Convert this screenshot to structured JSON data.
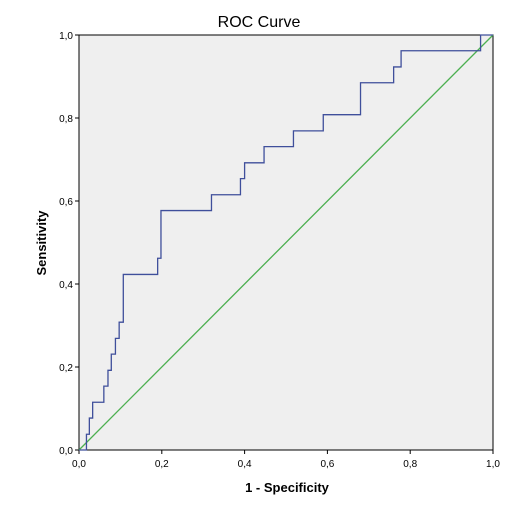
{
  "chart_data": {
    "type": "line",
    "title": "ROC Curve",
    "xlabel": "1 - Specificity",
    "ylabel": "Sensitivity",
    "xlim": [
      0,
      1
    ],
    "ylim": [
      0,
      1
    ],
    "x_ticks": [
      "0,0",
      "0,2",
      "0,4",
      "0,6",
      "0,8",
      "1,0"
    ],
    "y_ticks": [
      "0,0",
      "0,2",
      "0,4",
      "0,6",
      "0,8",
      "1,0"
    ],
    "grid": false,
    "legend": "none",
    "colors": {
      "plot_background": "#efefef",
      "roc_line": "#3f4f9b",
      "reference_line": "#4caf50"
    },
    "series": [
      {
        "role": "roc",
        "x": [
          0.0,
          0.018,
          0.018,
          0.025,
          0.025,
          0.033,
          0.033,
          0.06,
          0.06,
          0.07,
          0.07,
          0.078,
          0.078,
          0.088,
          0.088,
          0.097,
          0.097,
          0.107,
          0.107,
          0.19,
          0.19,
          0.198,
          0.198,
          0.32,
          0.32,
          0.39,
          0.39,
          0.4,
          0.4,
          0.447,
          0.447,
          0.518,
          0.518,
          0.59,
          0.59,
          0.68,
          0.68,
          0.76,
          0.76,
          0.778,
          0.778,
          0.97,
          0.97,
          1.0
        ],
        "y": [
          0.0,
          0.0,
          0.038,
          0.038,
          0.077,
          0.077,
          0.115,
          0.115,
          0.154,
          0.154,
          0.192,
          0.192,
          0.231,
          0.231,
          0.269,
          0.269,
          0.308,
          0.308,
          0.423,
          0.423,
          0.462,
          0.462,
          0.577,
          0.577,
          0.615,
          0.615,
          0.654,
          0.654,
          0.692,
          0.692,
          0.731,
          0.731,
          0.769,
          0.769,
          0.808,
          0.808,
          0.885,
          0.885,
          0.923,
          0.923,
          0.962,
          0.962,
          1.0,
          1.0
        ]
      },
      {
        "role": "reference",
        "x": [
          0,
          1
        ],
        "y": [
          0,
          1
        ]
      }
    ]
  }
}
